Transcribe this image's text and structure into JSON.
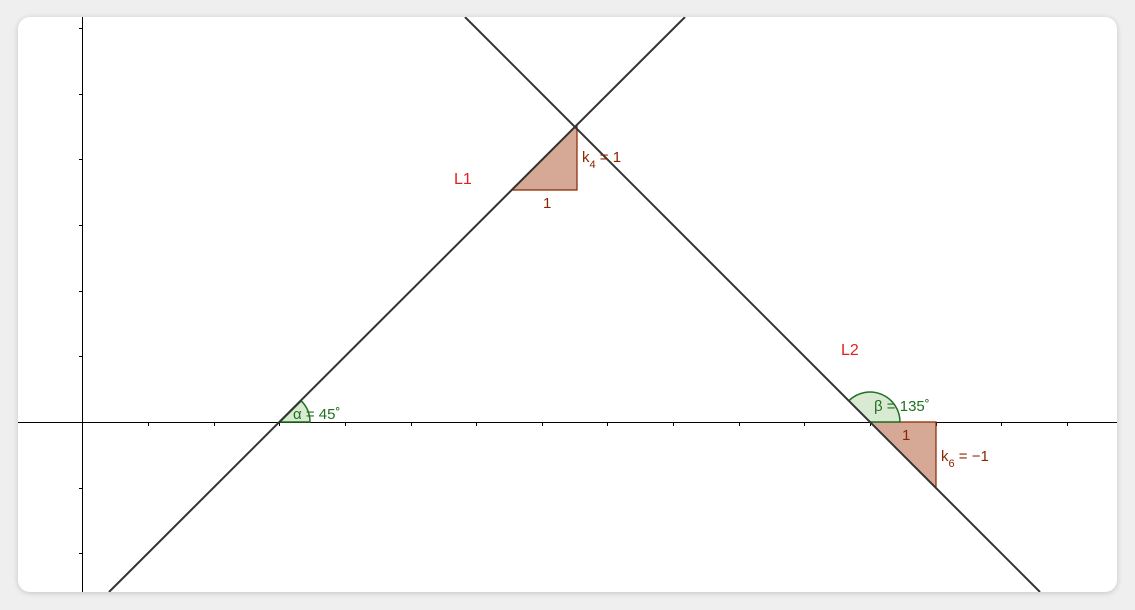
{
  "lines": {
    "L1": {
      "label": "L1",
      "color": "#e02020"
    },
    "L2": {
      "label": "L2",
      "color": "#e02020"
    }
  },
  "slope_triangles": {
    "t1": {
      "run_label": "1",
      "slope_prefix": "k",
      "slope_sub": "4",
      "slope_value": " = 1",
      "color": "#8b2500",
      "fill": "#d6a896"
    },
    "t2": {
      "run_label": "1",
      "slope_prefix": "k",
      "slope_sub": "6",
      "slope_value": " = −1",
      "color": "#8b2500",
      "fill": "#d6a896"
    }
  },
  "angles": {
    "alpha": {
      "symbol": "α",
      "text": " = 45˚",
      "color": "#207020"
    },
    "beta": {
      "symbol": "β",
      "text": " = 135˚",
      "color": "#207020"
    }
  },
  "axis_color": "#000000",
  "line_color": "#333333"
}
